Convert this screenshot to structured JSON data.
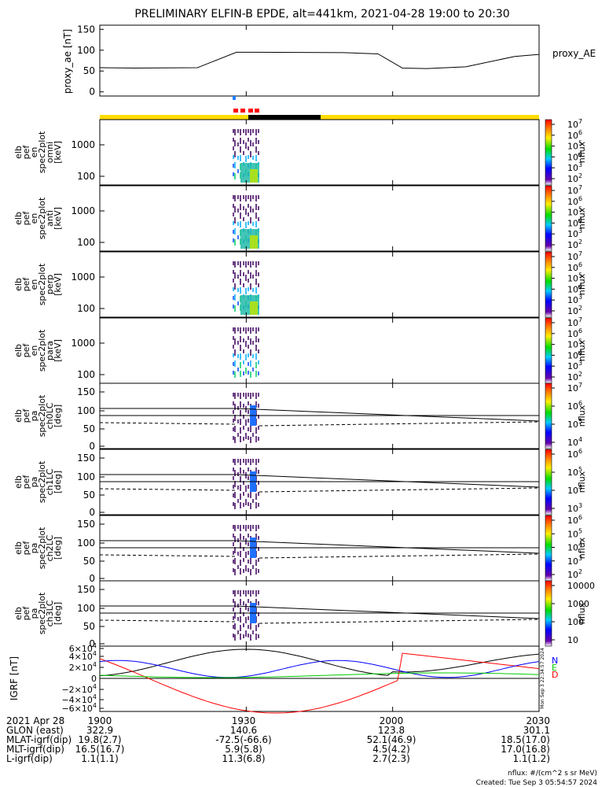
{
  "title": "PRELIMINARY ELFIN-B EPDE, alt=441km, 2021-04-28 19:00 to 20:30",
  "proxy": {
    "ylabel": "proxy_ae [nT]",
    "legend": "proxy_AE",
    "yticks": [
      "150",
      "100",
      "50",
      "0"
    ],
    "ylim": [
      -10,
      160
    ],
    "t": [
      0,
      7,
      20,
      28,
      32,
      50,
      57,
      62,
      67,
      75,
      85,
      90
    ],
    "v": [
      58,
      57,
      58,
      95,
      95,
      94,
      91,
      57,
      56,
      60,
      85,
      90
    ]
  },
  "energy_panels": [
    {
      "label": "elb pef en spec2plot omni [keV]",
      "yticks": [
        "1000",
        "100"
      ],
      "cbar_ticks": [
        "10^7",
        "10^6",
        "10^5",
        "10^4",
        "10^3",
        "10^2"
      ],
      "cbar_label": "nflux"
    },
    {
      "label": "elb pef en spec2plot anti [keV]",
      "yticks": [
        "1000",
        "100"
      ],
      "cbar_ticks": [
        "10^7",
        "10^6",
        "10^5",
        "10^4",
        "10^3",
        "10^2"
      ],
      "cbar_label": "nflux"
    },
    {
      "label": "elb pef en spec2plot perp [keV]",
      "yticks": [
        "1000",
        "100"
      ],
      "cbar_ticks": [
        "10^7",
        "10^6",
        "10^5",
        "10^4",
        "10^3",
        "10^2"
      ],
      "cbar_label": "nflux"
    },
    {
      "label": "elb pef en spec2plot para [keV]",
      "yticks": [
        "1000",
        "100"
      ],
      "cbar_ticks": [
        "10^7",
        "10^6",
        "10^5",
        "10^4",
        "10^3",
        "10^2"
      ],
      "cbar_label": "nflux"
    }
  ],
  "pa_panels": [
    {
      "label": "elb pef pa spec2plot ch0LC [deg]",
      "yticks": [
        "150",
        "100",
        "50",
        "0"
      ],
      "cbar_ticks": [
        "10^7",
        "10^6",
        "10^5",
        "10^4"
      ],
      "cbar_label": "nflux"
    },
    {
      "label": "elb pef pa spec2plot ch1LC [deg]",
      "yticks": [
        "150",
        "100",
        "50",
        "0"
      ],
      "cbar_ticks": [
        "10^6",
        "10^5",
        "10^4",
        "10^3"
      ],
      "cbar_label": "nflux"
    },
    {
      "label": "elb pef pa spec2plot ch2LC [deg]",
      "yticks": [
        "150",
        "100",
        "50",
        "0"
      ],
      "cbar_ticks": [
        "10^6",
        "10^5",
        "10^4",
        "10^3",
        "10^2"
      ],
      "cbar_label": "nflux"
    },
    {
      "label": "elb pef pa spec2plot ch3LC [deg]",
      "yticks": [
        "150",
        "100",
        "50",
        "0"
      ],
      "cbar_ticks": [
        "10000",
        "1000",
        "100",
        "10"
      ],
      "cbar_label": "nflux"
    }
  ],
  "igrf": {
    "ylabel": "IGRF [nT]",
    "yticks": [
      "6×10^4",
      "4×10^4",
      "2×10^4",
      "0",
      "−2×10^4",
      "−4×10^4",
      "−6×10^4"
    ],
    "legend": [
      {
        "name": "N",
        "color": "#0000ff"
      },
      {
        "name": "E",
        "color": "#00cc00"
      },
      {
        "name": "D",
        "color": "#ff0000"
      }
    ],
    "side_text": "Mon Sep  3 22:34:57 2024"
  },
  "footer": {
    "rows": [
      [
        "2021 Apr 28",
        "1900",
        "1930",
        "2000",
        "2030"
      ],
      [
        "GLON (east)",
        "322.9",
        "140.6",
        "123.8",
        "301.1"
      ],
      [
        "MLAT-igrf(dip)",
        "19.8(2.7)",
        "-72.5(-66.6)",
        "52.1(46.9)",
        "18.5(17.0)"
      ],
      [
        "MLT-igrf(dip)",
        "16.5(16.7)",
        "5.9(5.8)",
        "4.5(4.2)",
        "17.0(16.8)"
      ],
      [
        "L-igrf(dip)",
        "1.1(1.1)",
        "11.3(6.8)",
        "2.7(2.3)",
        "1.1(1.2)"
      ]
    ],
    "note1": "nflux: #/(cm^2 s sr MeV)",
    "note2": "Created: Tue Sep  3 05:54:57 2024"
  },
  "chart_data": {
    "type": "line",
    "title": "PRELIMINARY ELFIN-B EPDE, alt=441km, 2021-04-28 19:00 to 20:30",
    "x_ticks": [
      "1900",
      "1930",
      "2000",
      "2030"
    ],
    "series": [
      {
        "name": "proxy_AE",
        "x": [
          0,
          7,
          20,
          28,
          32,
          50,
          57,
          62,
          67,
          75,
          85,
          90
        ],
        "y": [
          58,
          57,
          58,
          95,
          95,
          94,
          91,
          57,
          56,
          60,
          85,
          90
        ]
      }
    ],
    "colors": {
      "yellow_bar": "#ffdd00",
      "black_bar": "#000000",
      "N": "#0000ff",
      "E": "#00cc00",
      "D": "#ff0000"
    }
  }
}
